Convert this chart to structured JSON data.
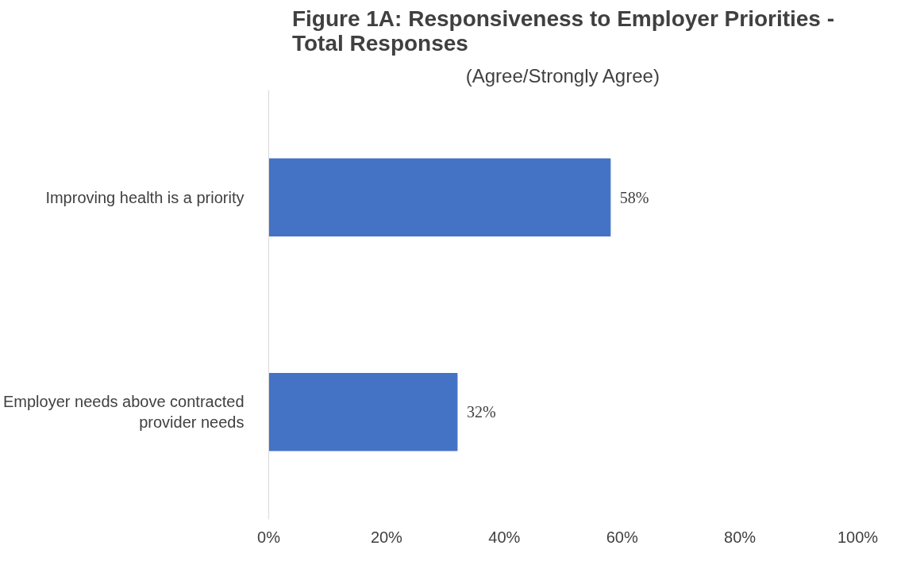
{
  "chart_data": {
    "type": "bar",
    "orientation": "horizontal",
    "title": "Figure 1A: Responsiveness to Employer Priorities - Total Responses",
    "subtitle": "(Agree/Strongly Agree)",
    "categories": [
      "Improving health is a priority",
      "Employer needs above contracted provider needs"
    ],
    "values": [
      58,
      32
    ],
    "color": "#4472c4",
    "value_labels": [
      "58%",
      "32%"
    ],
    "xlim": [
      0,
      100
    ],
    "xticks": [
      {
        "value": 0,
        "label": "0%"
      },
      {
        "value": 20,
        "label": "20%"
      },
      {
        "value": 40,
        "label": "40%"
      },
      {
        "value": 60,
        "label": "60%"
      },
      {
        "value": 80,
        "label": "80%"
      },
      {
        "value": 100,
        "label": "100%"
      }
    ],
    "grid": false
  }
}
